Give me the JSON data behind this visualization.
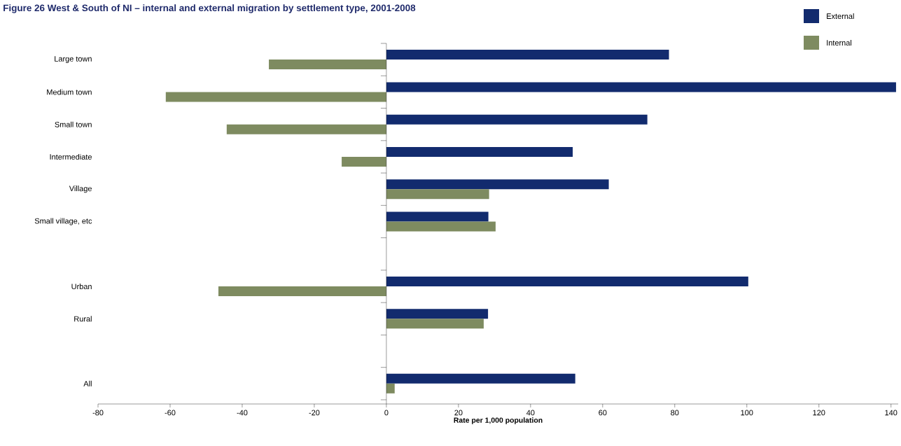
{
  "chart_data": {
    "type": "bar",
    "orientation": "horizontal",
    "title": "Figure 26  West & South of NI – internal and external migration by settlement type, 2001-2008",
    "xlabel": "Rate per 1,000 population",
    "categories": [
      "Large town",
      "Medium town",
      "Small town",
      "Intermediate",
      "Village",
      "Small village, etc",
      null,
      "Urban",
      "Rural",
      null,
      "All"
    ],
    "series": [
      {
        "name": "External",
        "color": "#122b6e",
        "values": [
          78.4,
          141.4,
          72.4,
          51.7,
          61.7,
          28.3,
          null,
          100.4,
          28.2,
          null,
          52.4
        ]
      },
      {
        "name": "Internal",
        "color": "#7e8b60",
        "values": [
          -32.6,
          -61.2,
          -44.3,
          -12.4,
          28.5,
          30.3,
          null,
          -46.6,
          27,
          null,
          2.3
        ]
      }
    ],
    "xlim": [
      -80,
      142
    ],
    "xticks": [
      -80,
      -60,
      -40,
      -20,
      0,
      20,
      40,
      60,
      80,
      100,
      120,
      140
    ],
    "legend": "top right"
  }
}
